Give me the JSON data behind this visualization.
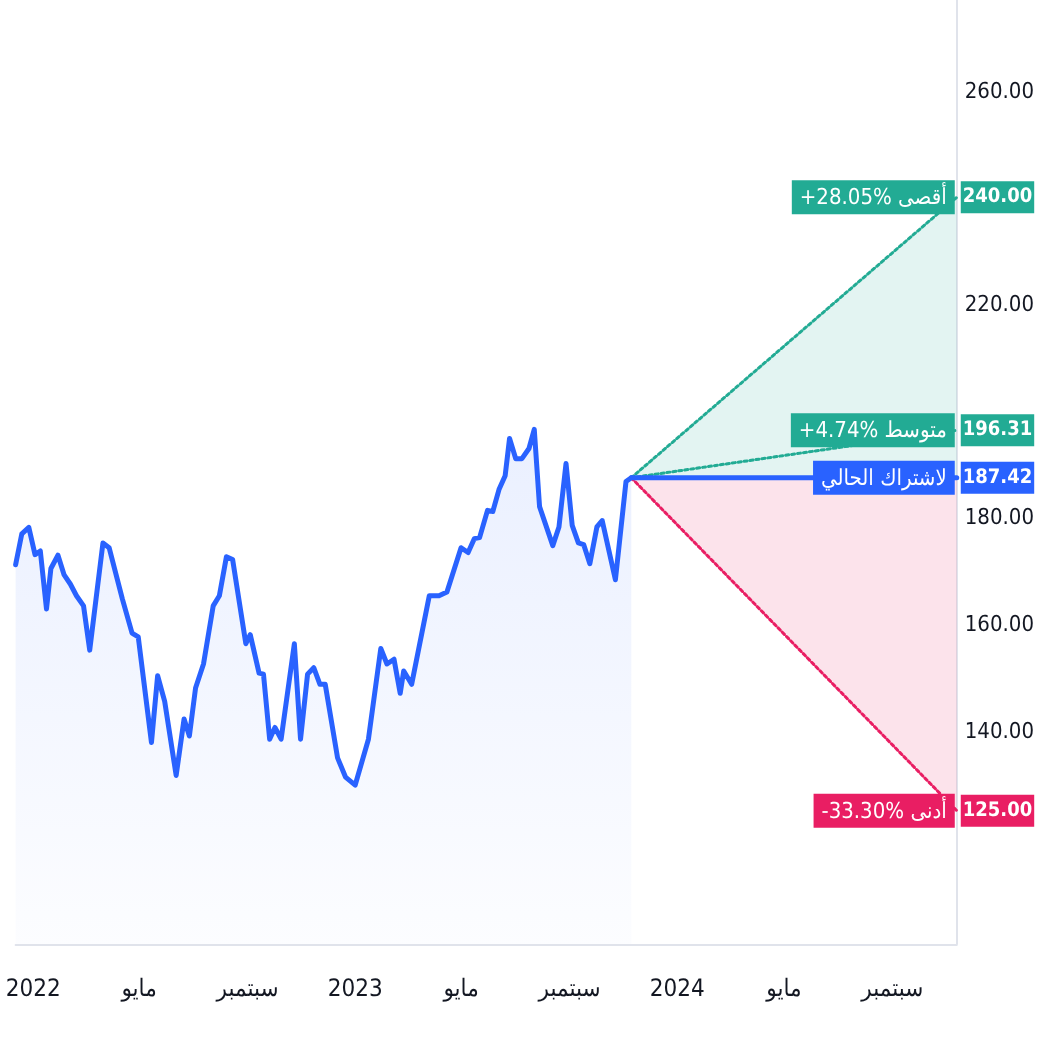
{
  "chart_data": {
    "type": "area",
    "x": [
      "2021-12-12",
      "2021-12-19",
      "2021-12-27",
      "2022-01-03",
      "2022-01-09",
      "2022-01-16",
      "2022-01-21",
      "2022-01-29",
      "2022-02-05",
      "2022-02-12",
      "2022-02-19",
      "2022-02-27",
      "2022-03-06",
      "2022-03-21",
      "2022-03-28",
      "2022-04-12",
      "2022-04-23",
      "2022-04-30",
      "2022-05-15",
      "2022-05-22",
      "2022-05-30",
      "2022-06-12",
      "2022-06-21",
      "2022-06-27",
      "2022-07-04",
      "2022-07-13",
      "2022-07-24",
      "2022-07-31",
      "2022-08-08",
      "2022-08-15",
      "2022-08-30",
      "2022-09-04",
      "2022-09-14",
      "2022-09-19",
      "2022-09-26",
      "2022-10-02",
      "2022-10-09",
      "2022-10-24",
      "2022-10-31",
      "2022-11-08",
      "2022-11-15",
      "2022-11-22",
      "2022-11-28",
      "2022-12-12",
      "2022-12-21",
      "2023-01-01",
      "2023-01-16",
      "2023-01-30",
      "2023-02-06",
      "2023-02-14",
      "2023-02-21",
      "2023-02-25",
      "2023-03-06",
      "2023-03-26",
      "2023-04-06",
      "2023-04-15",
      "2023-05-01",
      "2023-05-09",
      "2023-05-16",
      "2023-05-22",
      "2023-05-31",
      "2023-06-06",
      "2023-06-13",
      "2023-06-20",
      "2023-06-25",
      "2023-07-02",
      "2023-07-09",
      "2023-07-17",
      "2023-07-23",
      "2023-07-29",
      "2023-08-13",
      "2023-08-20",
      "2023-08-28",
      "2023-09-04",
      "2023-09-11",
      "2023-09-17",
      "2023-09-24",
      "2023-10-02",
      "2023-10-08",
      "2023-10-23",
      "2023-11-04",
      "2023-11-10"
    ],
    "series": [
      {
        "color": "#2962ff",
        "values": [
          171.1,
          176.9,
          178.1,
          173.0,
          173.7,
          162.8,
          170.4,
          172.9,
          169.2,
          167.5,
          165.3,
          163.4,
          155.1,
          175.2,
          174.3,
          164.7,
          158.3,
          157.6,
          137.8,
          150.3,
          145.5,
          131.6,
          142.2,
          139.0,
          148.0,
          152.5,
          163.4,
          165.3,
          172.6,
          172.1,
          156.3,
          158.0,
          150.8,
          150.6,
          138.4,
          140.6,
          138.4,
          156.3,
          138.4,
          150.6,
          151.8,
          148.7,
          148.7,
          134.9,
          131.3,
          129.8,
          138.4,
          155.4,
          152.5,
          153.4,
          147.0,
          151.2,
          148.7,
          165.3,
          165.3,
          166.0,
          174.3,
          173.4,
          176.0,
          176.2,
          181.3,
          181.1,
          185.2,
          187.8,
          194.8,
          191.0,
          191.0,
          192.9,
          196.5,
          182.0,
          174.7,
          178.2,
          190.1,
          178.5,
          175.2,
          174.9,
          171.3,
          178.2,
          179.4,
          168.3,
          186.7,
          187.42
        ]
      },
      {
        "name": "+28.05% أقصى",
        "color": "#22ab94",
        "line_style": "dotted",
        "x": [
          "2023-11-10",
          "2024-11-13"
        ],
        "values": [
          187.42,
          240.0
        ],
        "value_labels": [
          null,
          "240.00"
        ]
      },
      {
        "name": "+4.74% متوسط",
        "type": "line",
        "color": "#22ab94",
        "line_style": "dotted",
        "x": [
          "2023-11-10",
          "2024-11-13"
        ],
        "values": [
          187.42,
          196.31
        ],
        "value_labels": [
          null,
          "196.31"
        ]
      },
      {
        "name": "-33.30% أدنى",
        "color": "#e91e63",
        "line_style": "dotted",
        "x": [
          "2023-11-10",
          "2024-11-13"
        ],
        "values": [
          187.42,
          125.0
        ],
        "value_labels": [
          null,
          "125.00"
        ]
      },
      {
        "name": "لاشتراك الحالي",
        "type": "line",
        "color": "#2962ff",
        "x": [
          "2023-11-10",
          "2024-11-13"
        ],
        "values": [
          187.42,
          187.42
        ],
        "value_labels": [
          null,
          "187.42"
        ]
      }
    ],
    "xlim": [
      "2021-12-12",
      "2024-11-13"
    ],
    "xticks": [
      {
        "value": "2022-01-01",
        "label": "2022"
      },
      {
        "value": "2022-05-01",
        "label": "مايو"
      },
      {
        "value": "2022-09-01",
        "label": "سبتمبر"
      },
      {
        "value": "2023-01-01",
        "label": "2023"
      },
      {
        "value": "2023-05-01",
        "label": "مايو"
      },
      {
        "value": "2023-09-01",
        "label": "سبتمبر"
      },
      {
        "value": "2024-01-01",
        "label": "2024"
      },
      {
        "value": "2024-05-01",
        "label": "مايو"
      },
      {
        "value": "2024-09-01",
        "label": "سبتمبر"
      }
    ],
    "ylim": [
      100,
      277
    ],
    "yticks": [
      {
        "value": 140,
        "label": "140.00"
      },
      {
        "value": 160,
        "label": "160.00"
      },
      {
        "value": 180,
        "label": "180.00"
      },
      {
        "value": 220,
        "label": "220.00"
      },
      {
        "value": 240,
        "label": "240.00"
      },
      {
        "value": 260,
        "label": "260.00"
      }
    ],
    "grid": false,
    "legend": "right"
  }
}
